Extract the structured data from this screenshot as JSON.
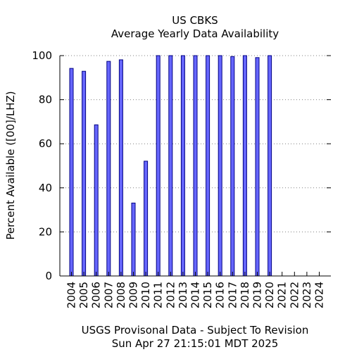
{
  "chart_data": {
    "type": "bar",
    "title": "US CBKS",
    "subtitle": "Average Yearly Data Availability",
    "xlabel": "",
    "ylabel": "Percent Available ([00]/LHZ)",
    "ylim": [
      0,
      100
    ],
    "yticks": [
      0,
      20,
      40,
      60,
      80,
      100
    ],
    "grid": "horizontal dotted",
    "categories": [
      "2004",
      "2005",
      "2006",
      "2007",
      "2008",
      "2009",
      "2010",
      "2011",
      "2012",
      "2013",
      "2014",
      "2015",
      "2016",
      "2017",
      "2018",
      "2019",
      "2020",
      "2021",
      "2022",
      "2023",
      "2024"
    ],
    "values": [
      94.2,
      92.9,
      68.6,
      97.4,
      98.1,
      33.1,
      52.1,
      100,
      100,
      100,
      100,
      100,
      100,
      99.6,
      100,
      99.1,
      100,
      0,
      0,
      0,
      0
    ],
    "bar_color": "#6666ff",
    "bar_edge_color": "#000080"
  },
  "footer": {
    "line1": "USGS Provisonal Data - Subject To Revision",
    "line2": "Sun Apr 27 21:15:01 MDT 2025"
  }
}
